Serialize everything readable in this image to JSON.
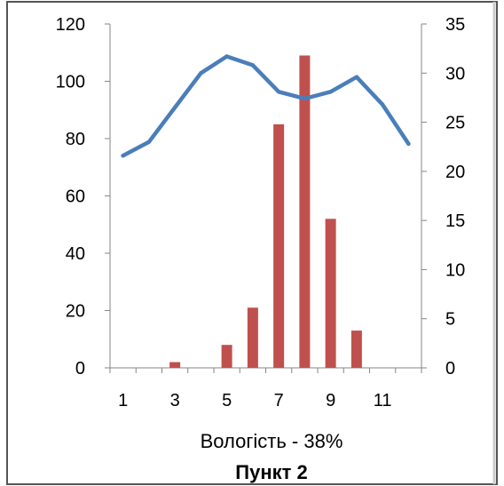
{
  "chart_data": {
    "type": "bar",
    "subtitle": "Вологість - 38%",
    "title": "Пункт 2",
    "x": [
      1,
      2,
      3,
      4,
      5,
      6,
      7,
      8,
      9,
      10,
      11,
      12
    ],
    "x_tick_labels": [
      "1",
      "3",
      "5",
      "7",
      "9",
      "11"
    ],
    "y_left": {
      "range": [
        0,
        120
      ],
      "ticks": [
        "0",
        "20",
        "40",
        "60",
        "80",
        "100",
        "120"
      ]
    },
    "y_right": {
      "range": [
        0,
        35
      ],
      "ticks": [
        "0",
        "5",
        "10",
        "15",
        "20",
        "25",
        "30",
        "35"
      ]
    },
    "series": [
      {
        "kind": "bar",
        "axis": "left",
        "color": "#c0504d",
        "values": [
          0,
          0,
          2,
          0,
          8,
          21,
          85,
          109,
          52,
          13,
          0,
          0
        ]
      },
      {
        "kind": "line",
        "axis": "right",
        "color": "#4a7ebb",
        "values": [
          21.6,
          23.0,
          26.5,
          30.0,
          31.7,
          30.8,
          28.1,
          27.4,
          28.1,
          29.6,
          26.8,
          22.8
        ]
      }
    ],
    "grid": false,
    "legend": "none"
  }
}
